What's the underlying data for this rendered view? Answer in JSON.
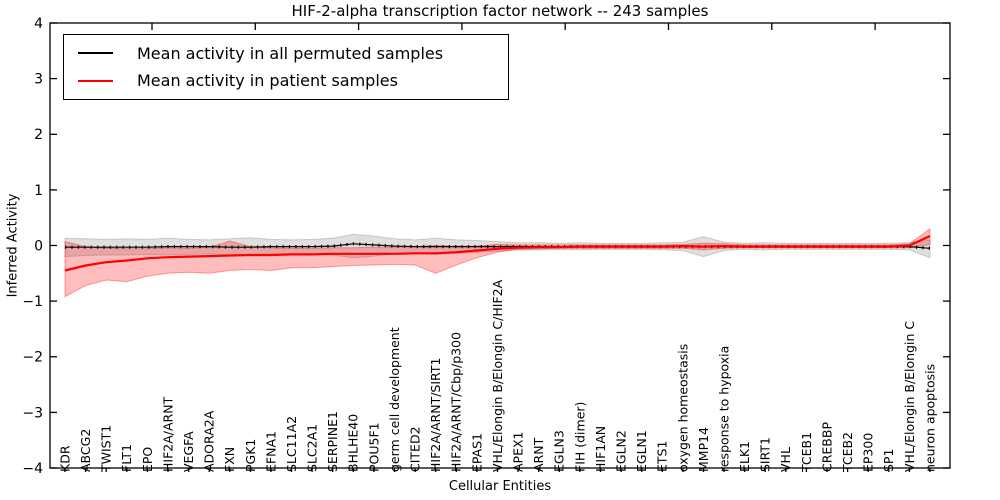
{
  "title": "HIF-2-alpha transcription factor network -- 243 samples",
  "legend": {
    "items": [
      {
        "label": "Mean activity in all permuted samples",
        "color": "#000000"
      },
      {
        "label": "Mean activity in patient samples",
        "color": "#ff0000"
      }
    ],
    "position": "upper left"
  },
  "colors": {
    "permuted_line": "#000000",
    "patient_line": "#ff0000",
    "permuted_band": "rgba(110,110,110,0.22)",
    "patient_band": "rgba(255,0,0,0.26)",
    "axis": "#000000"
  },
  "chart_data": {
    "type": "line",
    "title": "HIF-2-alpha transcription factor network -- 243 samples",
    "xlabel": "Cellular Entities",
    "ylabel": "Inferred Activity",
    "ylim": [
      -4,
      4
    ],
    "yticks": [
      "4",
      "3",
      "2",
      "1",
      "0",
      "−1",
      "−2",
      "−3",
      "−4"
    ],
    "ytick_values": [
      4,
      3,
      2,
      1,
      0,
      -1,
      -2,
      -3,
      -4
    ],
    "grid": false,
    "legend_position": "upper left",
    "categories": [
      "KDR",
      "ABCG2",
      "TWIST1",
      "FLT1",
      "EPO",
      "HIF2A/ARNT",
      "VEGFA",
      "ADORA2A",
      "FXN",
      "PGK1",
      "EFNA1",
      "SLC11A2",
      "SLC2A1",
      "SERPINE1",
      "BHLHE40",
      "POU5F1",
      "germ cell development",
      "CITED2",
      "HIF2A/ARNT/SIRT1",
      "HIF2A/ARNT/Cbp/p300",
      "EPAS1",
      "VHL/Elongin B/Elongin C/HIF2A",
      "APEX1",
      "ARNT",
      "EGLN3",
      "FIH (dimer)",
      "HIF1AN",
      "EGLN2",
      "EGLN1",
      "ETS1",
      "oxygen homeostasis",
      "MMP14",
      "response to hypoxia",
      "ELK1",
      "SIRT1",
      "VHL",
      "TCEB1",
      "CREBBP",
      "TCEB2",
      "EP300",
      "SP1",
      "VHL/Elongin B/Elongin C",
      "neuron apoptosis"
    ],
    "series": [
      {
        "name": "Mean activity in all permuted samples",
        "color": "#000000",
        "values": [
          -0.03,
          -0.03,
          -0.03,
          -0.03,
          -0.03,
          -0.02,
          -0.02,
          -0.02,
          -0.03,
          -0.03,
          -0.02,
          -0.02,
          -0.02,
          -0.01,
          0.03,
          0.01,
          -0.01,
          -0.02,
          -0.02,
          -0.02,
          -0.02,
          -0.02,
          -0.02,
          -0.02,
          -0.02,
          -0.02,
          -0.02,
          -0.02,
          -0.02,
          -0.02,
          -0.02,
          -0.02,
          -0.02,
          -0.02,
          -0.02,
          -0.02,
          -0.02,
          -0.02,
          -0.02,
          -0.02,
          -0.02,
          -0.02,
          -0.05
        ],
        "band_upper": [
          0.13,
          0.12,
          0.11,
          0.12,
          0.11,
          0.13,
          0.11,
          0.1,
          0.12,
          0.14,
          0.11,
          0.1,
          0.11,
          0.13,
          0.2,
          0.17,
          0.12,
          0.1,
          0.13,
          0.1,
          0.09,
          0.07,
          0.05,
          0.05,
          0.04,
          0.05,
          0.04,
          0.04,
          0.04,
          0.05,
          0.06,
          0.16,
          0.06,
          0.04,
          0.05,
          0.04,
          0.04,
          0.04,
          0.04,
          0.04,
          0.04,
          0.05,
          0.1
        ],
        "band_lower": [
          -0.2,
          -0.18,
          -0.17,
          -0.17,
          -0.16,
          -0.17,
          -0.16,
          -0.15,
          -0.17,
          -0.18,
          -0.16,
          -0.15,
          -0.16,
          -0.17,
          -0.22,
          -0.19,
          -0.15,
          -0.14,
          -0.16,
          -0.14,
          -0.12,
          -0.1,
          -0.08,
          -0.08,
          -0.07,
          -0.08,
          -0.07,
          -0.07,
          -0.07,
          -0.08,
          -0.09,
          -0.2,
          -0.09,
          -0.07,
          -0.08,
          -0.07,
          -0.07,
          -0.07,
          -0.07,
          -0.07,
          -0.07,
          -0.08,
          -0.22
        ]
      },
      {
        "name": "Mean activity in patient samples",
        "color": "#ff0000",
        "values": [
          -0.45,
          -0.36,
          -0.3,
          -0.27,
          -0.23,
          -0.21,
          -0.2,
          -0.19,
          -0.18,
          -0.17,
          -0.17,
          -0.16,
          -0.16,
          -0.15,
          -0.15,
          -0.15,
          -0.15,
          -0.14,
          -0.14,
          -0.12,
          -0.09,
          -0.06,
          -0.04,
          -0.03,
          -0.03,
          -0.02,
          -0.02,
          -0.02,
          -0.02,
          -0.02,
          -0.01,
          -0.02,
          -0.01,
          -0.02,
          -0.02,
          -0.02,
          -0.02,
          -0.02,
          -0.02,
          -0.02,
          -0.02,
          0.0,
          0.17
        ],
        "band_upper": [
          0.07,
          -0.02,
          -0.05,
          -0.06,
          -0.06,
          -0.04,
          -0.05,
          -0.03,
          0.08,
          -0.02,
          -0.04,
          -0.05,
          -0.05,
          -0.04,
          -0.04,
          -0.03,
          -0.03,
          -0.02,
          0.0,
          -0.01,
          -0.01,
          0.02,
          0.01,
          0.01,
          0.01,
          0.01,
          0.01,
          0.01,
          0.01,
          0.01,
          0.02,
          0.04,
          0.03,
          0.01,
          0.01,
          0.01,
          0.01,
          0.01,
          0.01,
          0.01,
          0.01,
          0.03,
          0.3
        ],
        "band_lower": [
          -0.92,
          -0.72,
          -0.62,
          -0.65,
          -0.55,
          -0.5,
          -0.48,
          -0.5,
          -0.45,
          -0.43,
          -0.45,
          -0.4,
          -0.4,
          -0.38,
          -0.36,
          -0.35,
          -0.34,
          -0.35,
          -0.5,
          -0.35,
          -0.22,
          -0.12,
          -0.07,
          -0.06,
          -0.05,
          -0.05,
          -0.05,
          -0.05,
          -0.05,
          -0.05,
          -0.05,
          -0.08,
          -0.05,
          -0.04,
          -0.04,
          -0.04,
          -0.04,
          -0.04,
          -0.04,
          -0.04,
          -0.04,
          -0.04,
          0.02
        ]
      }
    ]
  }
}
